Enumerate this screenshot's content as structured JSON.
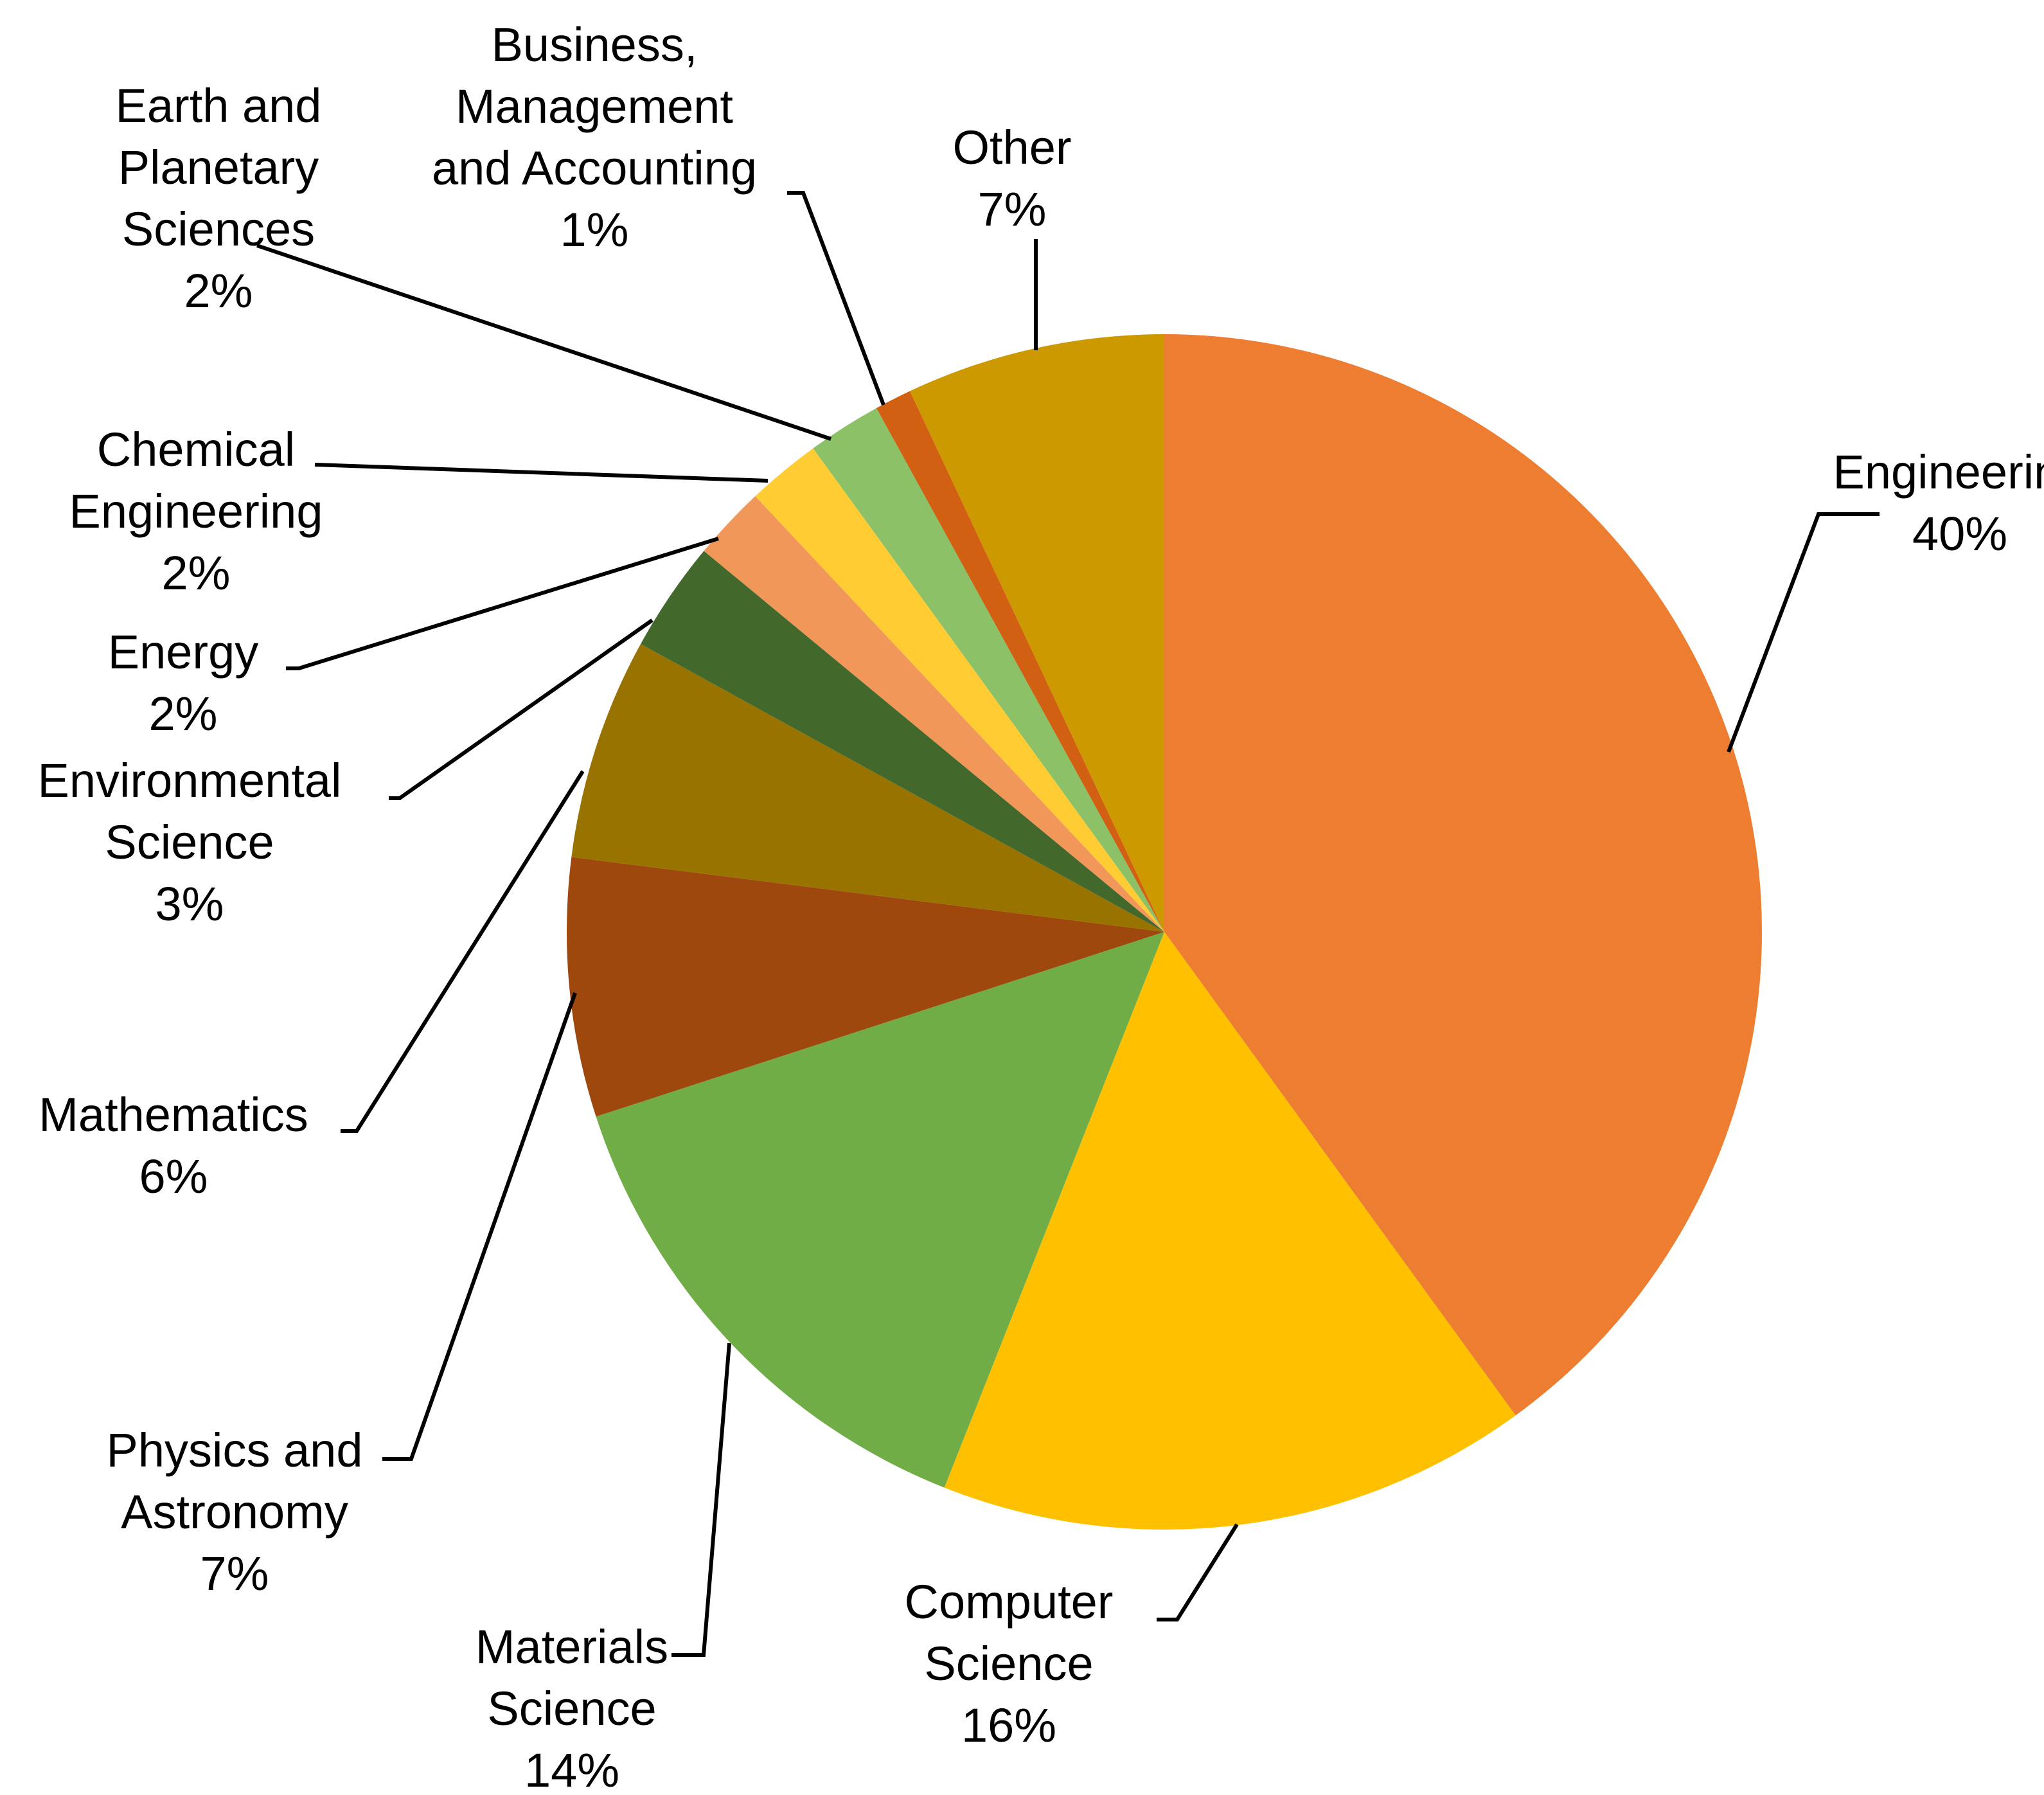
{
  "chart_data": {
    "type": "pie",
    "title": "",
    "start_angle_deg": 0,
    "direction": "clockwise",
    "slices": [
      {
        "name": "Engineering",
        "value": 40,
        "label_lines": [
          "Engineering",
          "40%"
        ],
        "color": "#ED7D31"
      },
      {
        "name": "Computer Science",
        "value": 16,
        "label_lines": [
          "Computer",
          "Science",
          "16%"
        ],
        "color": "#FFC000"
      },
      {
        "name": "Materials Science",
        "value": 14,
        "label_lines": [
          "Materials",
          "Science",
          "14%"
        ],
        "color": "#70AD47"
      },
      {
        "name": "Physics and Astronomy",
        "value": 7,
        "label_lines": [
          "Physics and",
          "Astronomy",
          "7%"
        ],
        "color": "#9E480E"
      },
      {
        "name": "Mathematics",
        "value": 6,
        "label_lines": [
          "Mathematics",
          "6%"
        ],
        "color": "#997300"
      },
      {
        "name": "Environmental Science",
        "value": 3,
        "label_lines": [
          "Environmental",
          "Science",
          "3%"
        ],
        "color": "#43682B"
      },
      {
        "name": "Energy",
        "value": 2,
        "label_lines": [
          "Energy",
          "2%"
        ],
        "color": "#F1975A"
      },
      {
        "name": "Chemical Engineering",
        "value": 2,
        "label_lines": [
          "Chemical",
          "Engineering",
          "2%"
        ],
        "color": "#FFCD33"
      },
      {
        "name": "Earth and Planetary Sciences",
        "value": 2,
        "label_lines": [
          "Earth and",
          "Planetary",
          "Sciences",
          "2%"
        ],
        "color": "#8CC168"
      },
      {
        "name": "Business, Management and Accounting",
        "value": 1,
        "label_lines": [
          "Business,",
          "Management",
          "and Accounting",
          "1%"
        ],
        "color": "#D26012"
      },
      {
        "name": "Other",
        "value": 7,
        "label_lines": [
          "Other",
          "7%"
        ],
        "color": "#CC9A00"
      }
    ]
  }
}
